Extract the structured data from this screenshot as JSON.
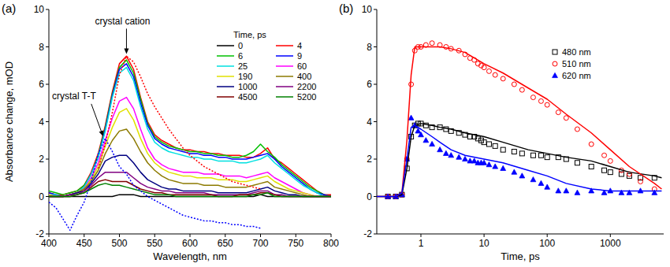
{
  "chart_data": [
    {
      "type": "line",
      "panel_label": "(a)",
      "x_label": "Wavelength, nm",
      "y_label": "Absorbance change, mOD",
      "legend": "top-right",
      "legend_title": "Time, ps",
      "grid": false,
      "xlim": [
        400,
        800
      ],
      "xticks": [
        400,
        450,
        500,
        550,
        600,
        650,
        700,
        750,
        800
      ],
      "ylim": [
        -2,
        10
      ],
      "yticks": [
        -2,
        0,
        2,
        4,
        6,
        8,
        10
      ],
      "x": [
        400,
        410,
        420,
        430,
        440,
        450,
        460,
        470,
        480,
        490,
        500,
        510,
        520,
        530,
        540,
        550,
        560,
        570,
        580,
        590,
        600,
        610,
        620,
        630,
        640,
        650,
        660,
        670,
        680,
        690,
        700,
        710,
        720,
        730,
        740,
        750,
        760,
        770,
        780,
        790,
        800
      ],
      "series": [
        {
          "name": "0",
          "color": "#000000",
          "values": [
            0,
            0,
            0,
            0,
            0,
            0,
            0,
            0,
            0,
            0,
            0.1,
            0.1,
            0.1,
            0,
            0,
            0,
            0,
            0,
            0,
            0,
            0,
            0,
            0,
            0,
            0,
            0,
            0,
            0,
            0,
            0,
            0.1,
            0,
            0,
            0,
            0,
            0,
            0,
            0,
            0,
            0,
            0
          ]
        },
        {
          "name": "4",
          "color": "#ff0000",
          "values": [
            0.2,
            0.1,
            0.1,
            0.2,
            0.3,
            0.6,
            1.3,
            2.3,
            3.8,
            5.6,
            7.1,
            7.5,
            6.8,
            5.3,
            4.0,
            3.3,
            3.0,
            2.8,
            2.6,
            2.5,
            2.5,
            2.4,
            2.4,
            2.3,
            2.3,
            2.2,
            2.2,
            2.2,
            2.1,
            2.1,
            2.3,
            2.6,
            2.0,
            1.8,
            1.5,
            1.2,
            0.9,
            0.6,
            0.3,
            0.1,
            0.1
          ]
        },
        {
          "name": "6",
          "color": "#00c000",
          "values": [
            0.3,
            0.2,
            0.1,
            0.2,
            0.3,
            0.6,
            1.2,
            2.2,
            3.7,
            5.5,
            6.9,
            7.3,
            6.6,
            5.2,
            3.9,
            3.2,
            2.9,
            2.7,
            2.6,
            2.5,
            2.4,
            2.4,
            2.3,
            2.3,
            2.2,
            2.2,
            2.1,
            2.1,
            2.2,
            2.4,
            2.8,
            2.4,
            2.1,
            1.7,
            1.4,
            1.1,
            0.8,
            0.5,
            0.3,
            0.1,
            0
          ]
        },
        {
          "name": "9",
          "color": "#0000ff",
          "values": [
            0.2,
            0.1,
            0,
            0.1,
            0.2,
            0.5,
            1.2,
            2.1,
            3.6,
            5.4,
            6.8,
            7.1,
            6.4,
            5.0,
            3.8,
            3.1,
            2.8,
            2.6,
            2.5,
            2.4,
            2.3,
            2.3,
            2.2,
            2.2,
            2.1,
            2.1,
            2.0,
            2.0,
            2.0,
            2.1,
            2.2,
            2.3,
            2.0,
            1.6,
            1.3,
            1.0,
            0.7,
            0.4,
            0.2,
            0.1,
            0
          ]
        },
        {
          "name": "25",
          "color": "#00e0e0",
          "values": [
            0.1,
            0.1,
            0,
            0.1,
            0.2,
            0.5,
            1.2,
            2.1,
            3.5,
            5.3,
            6.6,
            6.9,
            6.2,
            4.8,
            3.6,
            2.9,
            2.6,
            2.4,
            2.3,
            2.2,
            2.1,
            2.1,
            2.0,
            2.0,
            1.9,
            1.9,
            1.9,
            1.8,
            1.8,
            1.9,
            2.0,
            2.2,
            1.8,
            1.5,
            1.2,
            0.9,
            0.6,
            0.4,
            0.2,
            0,
            0
          ]
        },
        {
          "name": "60",
          "color": "#ff00ff",
          "values": [
            0.1,
            0,
            0,
            0.1,
            0.2,
            0.4,
            1.0,
            1.8,
            3.0,
            4.2,
            5.1,
            5.3,
            4.7,
            3.6,
            2.6,
            2.0,
            1.7,
            1.5,
            1.4,
            1.3,
            1.3,
            1.3,
            1.2,
            1.2,
            1.2,
            1.1,
            1.1,
            1.1,
            1.0,
            1.1,
            1.2,
            1.3,
            1.0,
            0.8,
            0.6,
            0.4,
            0.2,
            0.1,
            0,
            0,
            0
          ]
        },
        {
          "name": "190",
          "color": "#e0e000",
          "values": [
            0.1,
            0,
            0,
            0.1,
            0.2,
            0.4,
            0.9,
            1.6,
            2.7,
            3.7,
            4.5,
            4.7,
            4.1,
            3.1,
            2.3,
            1.8,
            1.5,
            1.3,
            1.2,
            1.1,
            1.1,
            1.0,
            1.0,
            1.0,
            0.9,
            0.9,
            0.9,
            0.8,
            0.8,
            0.9,
            1.0,
            1.1,
            0.8,
            0.6,
            0.4,
            0.3,
            0.2,
            0.1,
            0,
            0,
            0
          ]
        },
        {
          "name": "400",
          "color": "#8c7a00",
          "values": [
            0,
            0,
            0,
            0.1,
            0.2,
            0.4,
            0.8,
            1.4,
            2.3,
            3.0,
            3.5,
            3.6,
            3.1,
            2.4,
            1.8,
            1.4,
            1.1,
            0.9,
            0.8,
            0.7,
            0.7,
            0.7,
            0.6,
            0.6,
            0.6,
            0.5,
            0.5,
            0.5,
            0.5,
            0.6,
            0.7,
            0.8,
            0.5,
            0.4,
            0.3,
            0.2,
            0.1,
            0,
            0,
            0,
            0
          ]
        },
        {
          "name": "1000",
          "color": "#000080",
          "values": [
            0,
            0,
            0,
            0.1,
            0.2,
            0.3,
            0.7,
            1.2,
            1.9,
            2.1,
            2.2,
            2.2,
            1.8,
            1.3,
            0.9,
            0.7,
            0.5,
            0.4,
            0.4,
            0.3,
            0.3,
            0.3,
            0.3,
            0.3,
            0.2,
            0.2,
            0.2,
            0.2,
            0.2,
            0.3,
            0.4,
            0.5,
            0.3,
            0.2,
            0.1,
            0.1,
            0,
            0,
            0,
            0,
            0
          ]
        },
        {
          "name": "2200",
          "color": "#800080",
          "values": [
            0,
            0,
            0,
            0.1,
            0.1,
            0.3,
            0.6,
            1.0,
            1.3,
            1.3,
            1.3,
            1.3,
            1.0,
            0.7,
            0.5,
            0.4,
            0.3,
            0.3,
            0.2,
            0.2,
            0.2,
            0.2,
            0.2,
            0.1,
            0.1,
            0.1,
            0.1,
            0.1,
            0.1,
            0.2,
            0.3,
            0.3,
            0.1,
            0.1,
            0,
            0,
            0,
            0,
            0,
            0,
            0
          ]
        },
        {
          "name": "4500",
          "color": "#800000",
          "values": [
            0,
            0,
            0,
            0,
            0.1,
            0.2,
            0.5,
            0.8,
            0.9,
            0.8,
            0.8,
            0.8,
            0.6,
            0.4,
            0.3,
            0.2,
            0.2,
            0.1,
            0.1,
            0.1,
            0.1,
            0.1,
            0.1,
            0.1,
            0,
            0,
            0,
            0.1,
            0.1,
            0.1,
            0.2,
            0.2,
            0.1,
            0,
            0,
            0,
            0,
            0,
            0,
            0,
            0
          ]
        },
        {
          "name": "5200",
          "color": "#008000",
          "values": [
            0,
            0,
            0,
            0,
            0.1,
            0.2,
            0.4,
            0.6,
            0.7,
            0.6,
            0.6,
            0.5,
            0.4,
            0.3,
            0.2,
            0.1,
            0.1,
            0.1,
            0,
            0,
            0,
            0,
            0,
            0,
            0,
            0,
            0,
            0,
            0,
            0.1,
            0.1,
            0.2,
            0,
            0,
            0,
            0,
            0,
            0,
            0,
            0,
            0
          ]
        },
        {
          "color": "#ff0000",
          "line_style": "dotted",
          "values": [
            null,
            null,
            null,
            null,
            null,
            null,
            null,
            1.5,
            2.8,
            4.5,
            6.5,
            7.5,
            7.2,
            6.4,
            5.5,
            4.8,
            4.2,
            3.6,
            3.1,
            2.6,
            2.2,
            1.9,
            1.6,
            1.4,
            1.2,
            1.0,
            0.8,
            0.7,
            0.6,
            0.5,
            0.4,
            null,
            null,
            null,
            null,
            null,
            null,
            null,
            null,
            null,
            null
          ]
        },
        {
          "color": "#0000ff",
          "line_style": "dotted",
          "values": [
            -0.3,
            -0.6,
            -1.2,
            -1.8,
            -1.0,
            -0.3,
            0.8,
            2.3,
            3.1,
            2.4,
            1.6,
            1.2,
            0.6,
            0.3,
            0,
            -0.2,
            -0.4,
            -0.6,
            -0.8,
            -1.0,
            -1.1,
            -1.2,
            -1.3,
            -1.3,
            -1.4,
            -1.4,
            -1.5,
            -1.5,
            -1.6,
            -1.6,
            -1.7,
            null,
            null,
            null,
            null,
            null,
            null,
            null,
            null,
            null,
            null
          ]
        }
      ],
      "annotations": [
        {
          "text": "crystal cation",
          "x": 510,
          "y": 7.5
        },
        {
          "text": "crystal T-T",
          "x": 478,
          "y": 3.1
        }
      ]
    },
    {
      "type": "scatter",
      "panel_label": "(b)",
      "x_label": "Time, ps",
      "log": "x",
      "legend": "top-right",
      "grid": false,
      "xlim": [
        0.2,
        7000
      ],
      "xticks": [
        1,
        10,
        100,
        1000
      ],
      "ylim": [
        -2,
        10
      ],
      "yticks": [
        -2,
        0,
        2,
        4,
        6,
        8,
        10
      ],
      "series": [
        {
          "name": "480 nm",
          "type": "scatter",
          "marker": "square-open",
          "color": "#000000",
          "x": [
            0.3,
            0.4,
            0.5,
            0.6,
            0.7,
            0.8,
            0.9,
            1,
            1.2,
            1.5,
            2,
            2.5,
            3,
            4,
            5,
            6,
            7,
            8,
            9,
            10,
            12,
            15,
            20,
            30,
            40,
            60,
            80,
            100,
            150,
            200,
            300,
            500,
            800,
            1000,
            1500,
            2000,
            3000,
            5000
          ],
          "values": [
            0,
            0,
            0.1,
            1.5,
            3.2,
            3.8,
            3.9,
            3.9,
            3.8,
            3.7,
            3.7,
            3.6,
            3.5,
            3.4,
            3.3,
            3.2,
            3.2,
            3.1,
            3.0,
            2.9,
            2.8,
            2.7,
            2.5,
            2.4,
            2.3,
            2.2,
            2.2,
            2.1,
            2.1,
            2.0,
            1.8,
            1.6,
            1.4,
            1.3,
            1.2,
            1.1,
            1.0,
            1.0
          ]
        },
        {
          "name": "510 nm",
          "type": "scatter",
          "marker": "circle-open",
          "color": "#ff0000",
          "x": [
            0.3,
            0.4,
            0.5,
            0.6,
            0.7,
            0.8,
            0.9,
            1,
            1.2,
            1.5,
            2,
            2.5,
            3,
            4,
            5,
            6,
            7,
            8,
            9,
            10,
            12,
            15,
            20,
            30,
            40,
            60,
            80,
            100,
            150,
            200,
            300,
            500,
            800,
            1000,
            1500,
            2000,
            3000,
            5000
          ],
          "values": [
            0,
            0,
            0.1,
            2,
            6,
            7.8,
            8,
            8,
            8.1,
            8.2,
            8.1,
            8,
            7.9,
            7.8,
            7.6,
            7.4,
            7.3,
            7.1,
            7,
            6.9,
            6.7,
            6.5,
            6.3,
            6.0,
            5.7,
            5.3,
            5.1,
            4.9,
            4.5,
            4.2,
            3.6,
            2.8,
            2.2,
            1.9,
            1.4,
            1.2,
            0.8,
            0.4
          ]
        },
        {
          "name": "620 nm",
          "type": "scatter",
          "marker": "triangle",
          "color": "#0000ff",
          "x": [
            0.3,
            0.4,
            0.5,
            0.6,
            0.7,
            0.8,
            0.9,
            1,
            1.2,
            1.5,
            2,
            2.5,
            3,
            4,
            5,
            6,
            7,
            8,
            9,
            10,
            12,
            15,
            20,
            30,
            40,
            60,
            80,
            100,
            150,
            200,
            300,
            500,
            800,
            1000,
            1500,
            2000,
            3000,
            5000
          ],
          "values": [
            0,
            0,
            0.1,
            2.0,
            4.2,
            3.8,
            3.5,
            3.3,
            3.0,
            2.8,
            2.5,
            2.3,
            2.2,
            2.1,
            2.0,
            1.9,
            1.9,
            1.8,
            1.8,
            1.8,
            1.7,
            1.6,
            1.5,
            1.3,
            1.1,
            0.9,
            0.7,
            0.5,
            0.3,
            0.3,
            0.2,
            0.3,
            0.2,
            0.3,
            0.2,
            0.2,
            0.3,
            0.2
          ]
        },
        {
          "type": "line",
          "color": "#000000",
          "x": [
            0.2,
            0.4,
            0.5,
            0.6,
            0.7,
            0.8,
            1,
            1.5,
            2,
            3,
            5,
            10,
            20,
            50,
            100,
            200,
            500,
            1000,
            2000,
            5000,
            6500
          ],
          "values": [
            0,
            0,
            0.1,
            1.5,
            3.2,
            3.8,
            3.9,
            3.8,
            3.7,
            3.6,
            3.4,
            3.2,
            2.9,
            2.5,
            2.3,
            2.1,
            1.9,
            1.6,
            1.3,
            1.1,
            1.0
          ]
        },
        {
          "type": "line",
          "color": "#ff0000",
          "x": [
            0.2,
            0.4,
            0.5,
            0.6,
            0.7,
            0.8,
            1,
            1.5,
            2,
            3,
            5,
            10,
            20,
            50,
            100,
            200,
            500,
            1000,
            2000,
            5000,
            6500
          ],
          "values": [
            0,
            0,
            0.2,
            3,
            6.5,
            8,
            8,
            8,
            8,
            7.9,
            7.7,
            7.1,
            6.6,
            5.8,
            5.2,
            4.4,
            3.4,
            2.5,
            1.6,
            0.7,
            0.4
          ]
        },
        {
          "type": "line",
          "color": "#0000ff",
          "x": [
            0.2,
            0.4,
            0.5,
            0.6,
            0.7,
            0.8,
            1,
            1.5,
            2,
            3,
            5,
            10,
            20,
            50,
            100,
            200,
            500,
            1000,
            2000,
            5000,
            6500
          ],
          "values": [
            0,
            0,
            0.2,
            2,
            3.7,
            3.8,
            3.6,
            3.2,
            2.9,
            2.5,
            2.2,
            2.0,
            1.8,
            1.4,
            1.1,
            0.7,
            0.4,
            0.3,
            0.3,
            0.3,
            0.3
          ]
        }
      ]
    }
  ]
}
